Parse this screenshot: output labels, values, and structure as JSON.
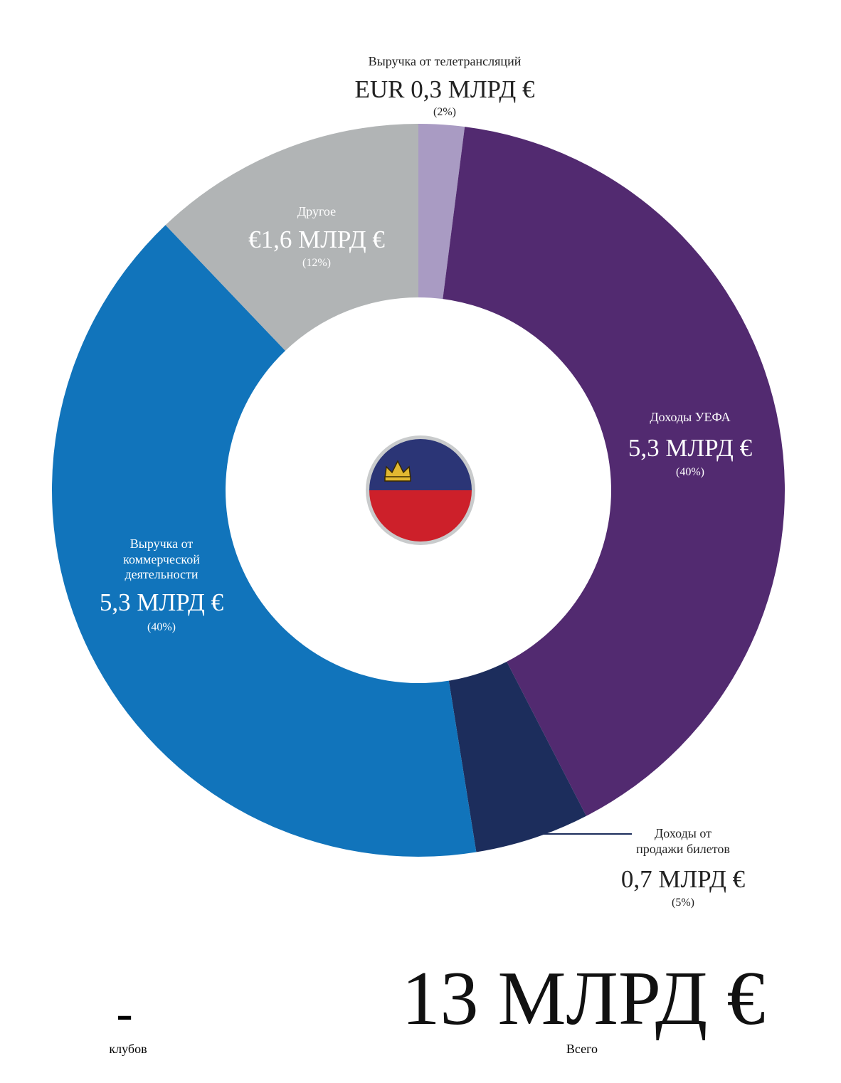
{
  "chart_data": {
    "type": "donut",
    "categories": [
      "Выручка от телетрансляций",
      "Доходы УЕФА",
      "Доходы от продажи билетов",
      "Выручка от коммерческой деятельности",
      "Другое"
    ],
    "values": [
      2,
      40,
      5,
      40,
      12
    ],
    "value_labels": [
      "(2%)",
      "(40%)",
      "(5%)",
      "(40%)",
      "(12%)"
    ],
    "amounts": [
      "EUR 0,3 МЛРД €",
      "5,3 МЛРД €",
      "0,7 МЛРД €",
      "5,3 МЛРД €",
      "€1,6 МЛРД €"
    ],
    "colors": [
      "#a99bc3",
      "#522a70",
      "#1c2d5c",
      "#1174bb",
      "#b1b4b5"
    ]
  },
  "footer": {
    "clubs_value": "-",
    "clubs_label": "клубов",
    "total_value": "13 МЛРД €",
    "total_label": "Всего"
  }
}
